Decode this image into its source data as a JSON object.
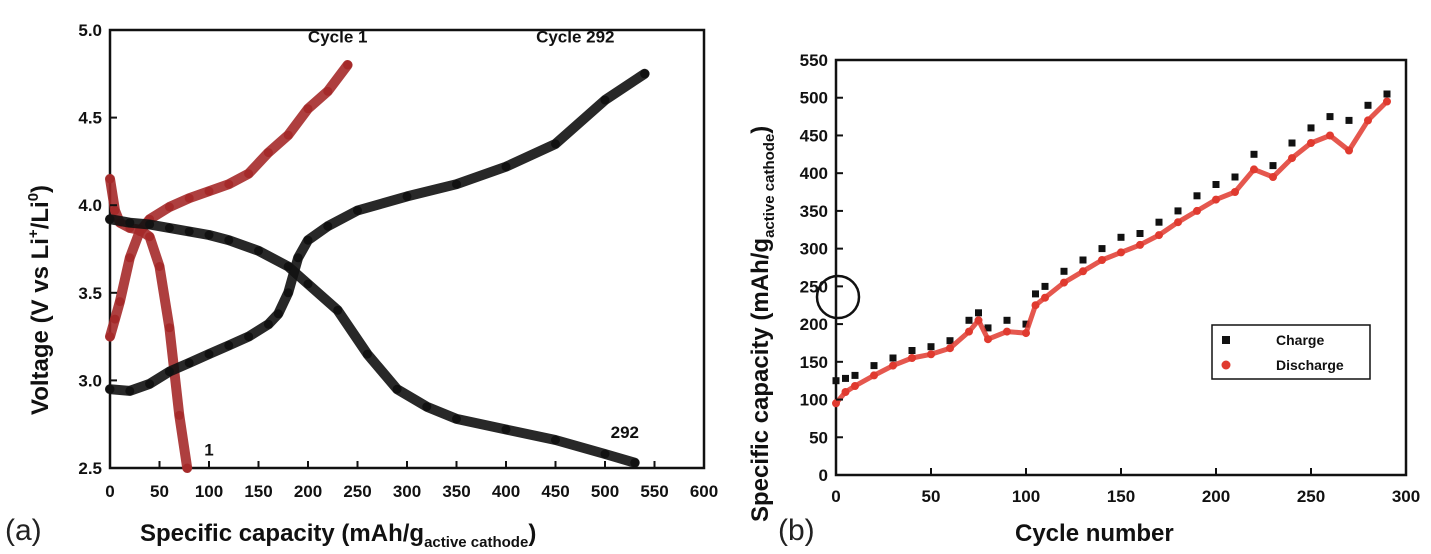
{
  "chart_data": [
    {
      "panel": "(a)",
      "type": "scatter",
      "xlabel": "Specific capacity (mAh/g",
      "xlabel_sub": "active cathode",
      "xlabel_close": ")",
      "ylabel": "Voltage (V vs Li",
      "ylabel_sup1": "+",
      "ylabel_mid": "/Li",
      "ylabel_sup2": "0",
      "ylabel_close": ")",
      "xlim": [
        0,
        600
      ],
      "ylim": [
        2.5,
        5.0
      ],
      "x_ticks": [
        "0",
        "50",
        "100",
        "150",
        "200",
        "250",
        "300",
        "350",
        "400",
        "450",
        "500",
        "550",
        "600"
      ],
      "y_ticks": [
        "2.5",
        "3.0",
        "3.5",
        "4.0",
        "4.5",
        "5.0"
      ],
      "annotations": [
        {
          "text": "Cycle 1",
          "x": 230,
          "y": 4.93
        },
        {
          "text": "Cycle 292",
          "x": 470,
          "y": 4.93
        },
        {
          "text": "1",
          "x": 100,
          "y": 2.57
        },
        {
          "text": "292",
          "x": 520,
          "y": 2.67
        }
      ],
      "series": [
        {
          "curve": "cycle-1-charge",
          "color": "#a52a2a",
          "x": [
            0,
            5,
            10,
            20,
            30,
            40,
            60,
            80,
            100,
            120,
            140,
            160,
            180,
            200,
            220,
            240
          ],
          "y": [
            3.25,
            3.35,
            3.45,
            3.7,
            3.85,
            3.92,
            3.99,
            4.04,
            4.08,
            4.12,
            4.18,
            4.3,
            4.4,
            4.55,
            4.65,
            4.8
          ]
        },
        {
          "curve": "cycle-1-discharge",
          "color": "#a52a2a",
          "x": [
            0,
            5,
            10,
            20,
            30,
            40,
            50,
            60,
            70,
            78
          ],
          "y": [
            4.15,
            3.97,
            3.9,
            3.87,
            3.86,
            3.82,
            3.65,
            3.3,
            2.8,
            2.5
          ]
        },
        {
          "curve": "cycle-292-charge",
          "color": "#111111",
          "x": [
            0,
            20,
            40,
            60,
            80,
            100,
            120,
            140,
            160,
            170,
            180,
            190,
            200,
            220,
            250,
            300,
            350,
            400,
            450,
            500,
            540
          ],
          "y": [
            2.95,
            2.94,
            2.98,
            3.05,
            3.1,
            3.15,
            3.2,
            3.25,
            3.32,
            3.38,
            3.5,
            3.7,
            3.8,
            3.88,
            3.97,
            4.05,
            4.12,
            4.22,
            4.35,
            4.6,
            4.75
          ]
        },
        {
          "curve": "cycle-292-discharge",
          "color": "#111111",
          "x": [
            0,
            20,
            40,
            60,
            80,
            100,
            120,
            150,
            180,
            200,
            230,
            260,
            290,
            320,
            350,
            400,
            450,
            500,
            530
          ],
          "y": [
            3.92,
            3.9,
            3.89,
            3.87,
            3.85,
            3.83,
            3.8,
            3.74,
            3.65,
            3.55,
            3.4,
            3.15,
            2.95,
            2.85,
            2.78,
            2.72,
            2.66,
            2.58,
            2.53
          ]
        }
      ]
    },
    {
      "panel": "(b)",
      "type": "scatter",
      "xlabel": "Cycle number",
      "ylabel": "Specific capacity (mAh/g",
      "ylabel_sub": "active cathode",
      "ylabel_close": ")",
      "xlim": [
        0,
        300
      ],
      "ylim": [
        0,
        550
      ],
      "x_ticks": [
        "0",
        "50",
        "100",
        "150",
        "200",
        "250",
        "300"
      ],
      "y_ticks": [
        "0",
        "50",
        "100",
        "150",
        "200",
        "250",
        "300",
        "350",
        "400",
        "450",
        "500",
        "550"
      ],
      "legend": {
        "position": "right",
        "entries": [
          "Charge",
          "Discharge"
        ]
      },
      "series": [
        {
          "name": "Charge",
          "color": "#111111",
          "x": [
            0,
            5,
            10,
            20,
            30,
            40,
            50,
            60,
            70,
            75,
            80,
            90,
            100,
            105,
            110,
            120,
            130,
            140,
            150,
            160,
            170,
            180,
            190,
            200,
            210,
            220,
            230,
            240,
            250,
            260,
            270,
            280,
            290
          ],
          "y": [
            125,
            128,
            132,
            145,
            155,
            165,
            170,
            178,
            205,
            215,
            195,
            205,
            200,
            240,
            250,
            270,
            285,
            300,
            315,
            320,
            335,
            350,
            370,
            385,
            395,
            425,
            410,
            440,
            460,
            475,
            470,
            490,
            505
          ]
        },
        {
          "name": "Discharge",
          "color": "#e03a2f",
          "x": [
            0,
            5,
            10,
            20,
            30,
            40,
            50,
            60,
            70,
            75,
            80,
            90,
            100,
            105,
            110,
            120,
            130,
            140,
            150,
            160,
            170,
            180,
            190,
            200,
            210,
            220,
            230,
            240,
            250,
            260,
            270,
            280,
            290
          ],
          "y": [
            95,
            110,
            118,
            132,
            145,
            155,
            160,
            168,
            190,
            205,
            180,
            190,
            188,
            225,
            235,
            255,
            270,
            285,
            295,
            305,
            318,
            335,
            350,
            365,
            375,
            405,
            395,
            420,
            440,
            450,
            430,
            470,
            495
          ]
        }
      ]
    }
  ]
}
